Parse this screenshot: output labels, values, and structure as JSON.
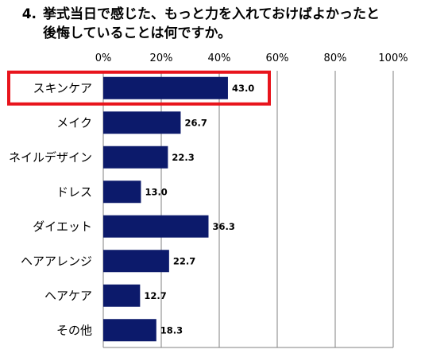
{
  "title": {
    "number": "4.",
    "line1": "挙式当日で感じた、もっと力を入れておけばよかったと",
    "line2": "後悔していることは何ですか。"
  },
  "chart_data": {
    "type": "bar",
    "orientation": "horizontal",
    "categories": [
      "スキンケア",
      "メイク",
      "ネイルデザイン",
      "ドレス",
      "ダイエット",
      "ヘアアレンジ",
      "ヘアケア",
      "その他"
    ],
    "values": [
      43.0,
      26.7,
      22.3,
      13.0,
      36.3,
      22.7,
      12.7,
      18.3
    ],
    "value_labels": [
      "43.0",
      "26.7",
      "22.3",
      "13.0",
      "36.3",
      "22.7",
      "12.7",
      "18.3"
    ],
    "xlim": [
      0,
      100
    ],
    "x_ticks": [
      "0%",
      "20%",
      "40%",
      "60%",
      "80%",
      "100%"
    ],
    "x_tick_values": [
      0,
      20,
      40,
      60,
      80,
      100
    ],
    "grid": true,
    "bar_color": "#0c1a6b",
    "highlight": {
      "category": "スキンケア",
      "color": "#e8141c"
    }
  }
}
